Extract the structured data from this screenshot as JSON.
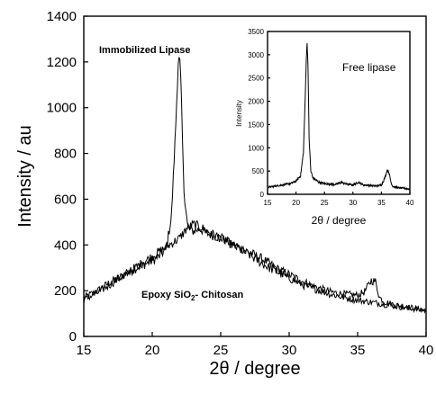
{
  "chart_data": [
    {
      "type": "line",
      "xlabel": "2θ / degree",
      "ylabel": "Intensity / au",
      "xlim": [
        15,
        40
      ],
      "ylim": [
        0,
        1400
      ],
      "xticks": [
        15,
        20,
        25,
        30,
        35,
        40
      ],
      "yticks": [
        0,
        200,
        400,
        600,
        800,
        1000,
        1200,
        1400
      ],
      "grid": false,
      "annotations": [
        {
          "id": "immobilized",
          "text": "Immobilized Lipase"
        },
        {
          "id": "epoxy",
          "text_main": "Epoxy SiO",
          "text_sub": "2",
          "text_tail": "- Chitosan"
        }
      ],
      "series": [
        {
          "id": "immobilized",
          "x": [
            15,
            16,
            17,
            18,
            19,
            20,
            20.5,
            21,
            21.4,
            21.7,
            21.9,
            22.0,
            22.1,
            22.3,
            22.6,
            23,
            23.5,
            24,
            25,
            26,
            27,
            28,
            29,
            30,
            31,
            32,
            33,
            34,
            35,
            35.5,
            36.0,
            36.3,
            36.6,
            37,
            38,
            39,
            40
          ],
          "y": [
            170,
            200,
            240,
            270,
            305,
            330,
            350,
            380,
            520,
            900,
            1200,
            1220,
            1100,
            650,
            470,
            460,
            470,
            450,
            430,
            400,
            370,
            340,
            300,
            270,
            240,
            215,
            195,
            185,
            180,
            195,
            245,
            240,
            170,
            150,
            135,
            125,
            115
          ]
        },
        {
          "id": "epoxy",
          "x": [
            15,
            16,
            17,
            18,
            19,
            20,
            21,
            22,
            22.5,
            23,
            23.5,
            24,
            25,
            26,
            27,
            28,
            29,
            30,
            31,
            32,
            33,
            34,
            35,
            36,
            37,
            38,
            39,
            40
          ],
          "y": [
            160,
            190,
            230,
            270,
            310,
            350,
            390,
            430,
            470,
            490,
            480,
            460,
            430,
            395,
            360,
            320,
            285,
            255,
            225,
            205,
            185,
            170,
            158,
            150,
            140,
            130,
            122,
            112
          ]
        }
      ]
    },
    {
      "type": "line",
      "xlabel": "2θ / degree",
      "ylabel": "Intensity",
      "legend": "Free lipase",
      "xlim": [
        15,
        40
      ],
      "ylim": [
        0,
        3500
      ],
      "xticks": [
        15,
        20,
        25,
        30,
        35,
        40
      ],
      "yticks": [
        0,
        500,
        1000,
        1500,
        2000,
        2500,
        3000,
        3500
      ],
      "grid": false,
      "series": [
        {
          "id": "free",
          "x": [
            15,
            16,
            17,
            18,
            19,
            20,
            20.8,
            21.3,
            21.6,
            21.8,
            21.95,
            22.1,
            22.3,
            22.6,
            23,
            24,
            25,
            26,
            27,
            28,
            28.5,
            29,
            30,
            31,
            31.5,
            32,
            33,
            34,
            35,
            35.6,
            36.0,
            36.3,
            36.7,
            37,
            38,
            39,
            40
          ],
          "y": [
            150,
            170,
            190,
            210,
            230,
            280,
            400,
            900,
            2000,
            2900,
            3250,
            2800,
            1200,
            500,
            350,
            260,
            230,
            220,
            210,
            260,
            230,
            220,
            200,
            260,
            220,
            200,
            190,
            180,
            200,
            350,
            520,
            480,
            250,
            170,
            140,
            130,
            110
          ]
        }
      ]
    }
  ]
}
